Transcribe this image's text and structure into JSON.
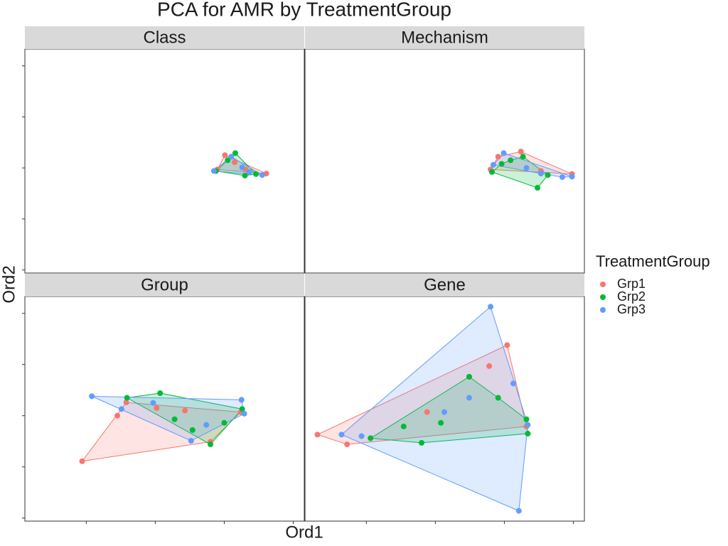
{
  "chart_data": {
    "type": "scatter",
    "title": "PCA for AMR by TreatmentGroup",
    "x_label": "Ord1",
    "y_label": "Ord2",
    "legend_title": "TreatmentGroup",
    "series": [
      {
        "name": "Grp1",
        "color": "#F8766D"
      },
      {
        "name": "Grp2",
        "color": "#00BA38"
      },
      {
        "name": "Grp3",
        "color": "#619CFF"
      }
    ],
    "xlim": [
      -0.89,
      3.16
    ],
    "ylim": [
      -0.06,
      4.33
    ],
    "xticks": [
      0,
      1,
      2,
      3
    ],
    "yticks": [
      0,
      1,
      2,
      3,
      4
    ],
    "grid": false,
    "facets": [
      {
        "title": "Class",
        "points": [
          {
            "x": [
              2.01,
              2.61,
              2.15,
              2.31,
              1.9
            ],
            "y": [
              2.25,
              1.89,
              2.11,
              1.97,
              1.97
            ]
          },
          {
            "x": [
              2.16,
              2.3,
              1.88,
              2.46,
              2.05
            ],
            "y": [
              2.29,
              1.85,
              1.94,
              1.88,
              2.15
            ]
          },
          {
            "x": [
              1.85,
              2.55,
              2.1,
              2.26,
              2.36
            ],
            "y": [
              1.94,
              1.86,
              2.22,
              2.01,
              1.92
            ]
          }
        ]
      },
      {
        "title": "Mechanism",
        "points": [
          {
            "x": [
              2.24,
              2.98,
              1.91,
              2.53,
              1.8
            ],
            "y": [
              2.32,
              1.88,
              2.22,
              1.94,
              1.97
            ]
          },
          {
            "x": [
              2.48,
              1.82,
              2.09,
              2.63,
              2.27,
              1.96
            ],
            "y": [
              1.61,
              1.92,
              2.15,
              1.86,
              2.22,
              2.08
            ]
          },
          {
            "x": [
              1.99,
              2.98,
              1.84,
              2.84,
              2.32,
              2.53
            ],
            "y": [
              2.29,
              1.83,
              2.06,
              1.82,
              2.0,
              1.89
            ]
          }
        ]
      },
      {
        "title": "Group",
        "points": [
          {
            "x": [
              -0.06,
              0.45,
              0.58,
              1.8,
              2.24,
              1.43,
              1.02
            ],
            "y": [
              1.11,
              2.0,
              2.26,
              1.49,
              2.07,
              2.1,
              2.15
            ]
          },
          {
            "x": [
              1.07,
              0.59,
              1.8,
              2.26,
              1.54,
              1.28,
              2.0
            ],
            "y": [
              2.44,
              2.35,
              1.44,
              2.13,
              1.72,
              1.93,
              1.86
            ]
          },
          {
            "x": [
              0.08,
              2.25,
              1.52,
              0.51,
              2.29,
              1.74,
              0.97
            ],
            "y": [
              2.38,
              2.31,
              1.51,
              2.13,
              2.04,
              1.82,
              2.25
            ]
          }
        ]
      },
      {
        "title": "Gene",
        "points": [
          {
            "x": [
              -0.71,
              -0.28,
              2.04,
              1.78,
              2.32,
              0.88,
              1.49
            ],
            "y": [
              1.63,
              1.44,
              3.38,
              2.97,
              1.79,
              2.07,
              2.76
            ]
          },
          {
            "x": [
              0.06,
              0.8,
              1.49,
              2.34,
              2.32,
              1.08,
              1.91,
              0.54
            ],
            "y": [
              1.56,
              1.47,
              2.76,
              1.65,
              1.93,
              1.86,
              2.35,
              1.79
            ]
          },
          {
            "x": [
              1.8,
              2.21,
              -0.36,
              2.34,
              2.13,
              1.13,
              -0.07,
              1.49
            ],
            "y": [
              4.13,
              0.14,
              1.63,
              1.82,
              2.63,
              2.07,
              1.6,
              2.35
            ]
          }
        ]
      }
    ]
  }
}
